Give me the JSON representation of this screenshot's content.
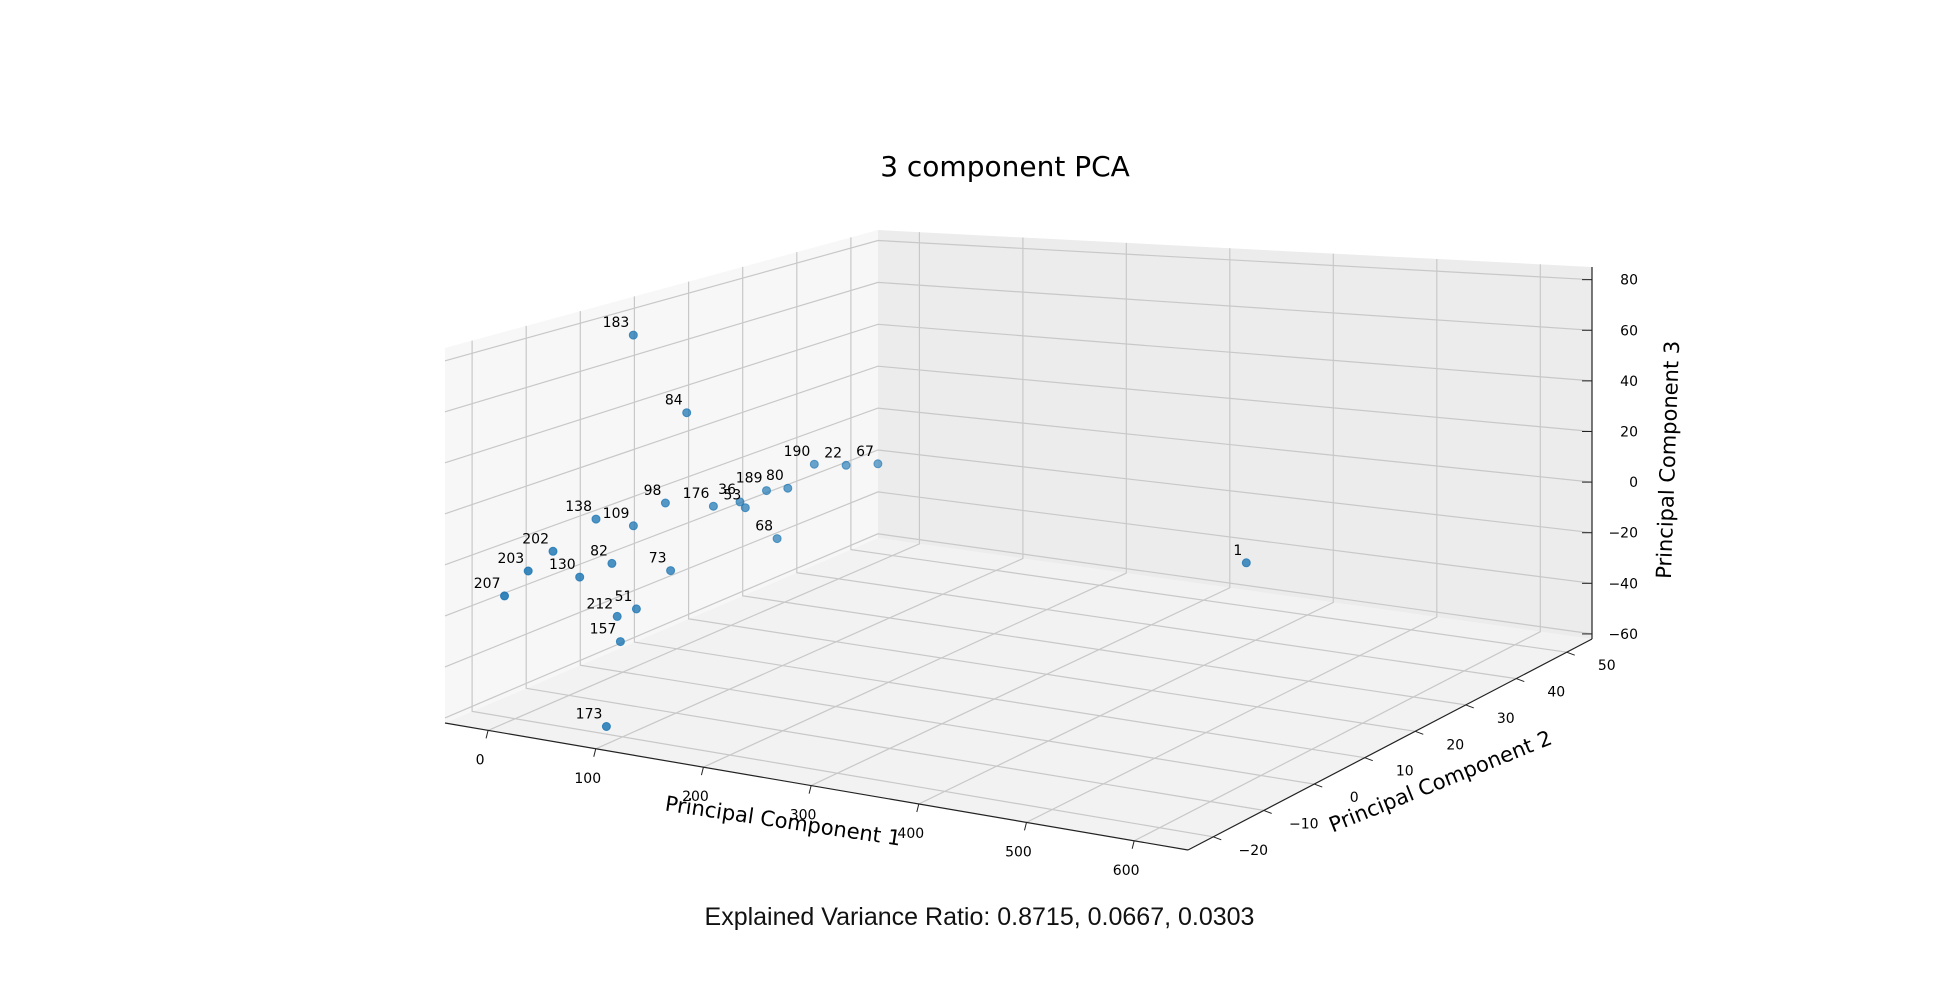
{
  "chart_data": {
    "type": "scatter",
    "projection": "3d",
    "title": "3 component PCA",
    "xlabel": "Principal Component 1",
    "ylabel": "Principal Component 2",
    "zlabel": "Principal Component 3",
    "xticks": [
      "0",
      "100",
      "200",
      "300",
      "400",
      "500",
      "600"
    ],
    "yticks": [
      "−20",
      "−10",
      "0",
      "10",
      "20",
      "30",
      "40",
      "50"
    ],
    "zticks": [
      "−60",
      "−40",
      "−20",
      "0",
      "20",
      "40",
      "60",
      "80"
    ],
    "xlim": [
      -40,
      650
    ],
    "ylim": [
      -25,
      55
    ],
    "zlim": [
      -62,
      85
    ],
    "grid": true,
    "marker_color": "#1f77b4",
    "labeled_points": [
      {
        "label": "183",
        "x": 25,
        "y": -3,
        "z": 80
      },
      {
        "label": "84",
        "x": 60,
        "y": 0,
        "z": 48
      },
      {
        "label": "190",
        "x": 140,
        "y": 8,
        "z": 25
      },
      {
        "label": "22",
        "x": 160,
        "y": 10,
        "z": 24
      },
      {
        "label": "67",
        "x": 180,
        "y": 12,
        "z": 24
      },
      {
        "label": "189",
        "x": 110,
        "y": 5,
        "z": 15
      },
      {
        "label": "80",
        "x": 125,
        "y": 6,
        "z": 16
      },
      {
        "label": "53",
        "x": 95,
        "y": 4,
        "z": 8
      },
      {
        "label": "98",
        "x": 40,
        "y": 0,
        "z": 10
      },
      {
        "label": "176",
        "x": 70,
        "y": 3,
        "z": 8
      },
      {
        "label": "36",
        "x": 85,
        "y": 5,
        "z": 9
      },
      {
        "label": "68",
        "x": 120,
        "y": 5,
        "z": -4
      },
      {
        "label": "138",
        "x": -5,
        "y": -4,
        "z": 4
      },
      {
        "label": "109",
        "x": 15,
        "y": -1,
        "z": 0
      },
      {
        "label": "73",
        "x": 55,
        "y": -2,
        "z": -15
      },
      {
        "label": "82",
        "x": 15,
        "y": -5,
        "z": -12
      },
      {
        "label": "202",
        "x": -20,
        "y": -9,
        "z": -6
      },
      {
        "label": "130",
        "x": 0,
        "y": -8,
        "z": -16
      },
      {
        "label": "212",
        "x": 25,
        "y": -6,
        "z": -32
      },
      {
        "label": "51",
        "x": 38,
        "y": -5,
        "z": -29
      },
      {
        "label": "157",
        "x": 28,
        "y": -6,
        "z": -42
      },
      {
        "label": "173",
        "x": 35,
        "y": -10,
        "z": -72
      },
      {
        "label": "207",
        "x": -35,
        "y": -15,
        "z": -20
      },
      {
        "label": "203",
        "x": -28,
        "y": -12,
        "z": -12
      },
      {
        "label": "1",
        "x": 610,
        "y": -5,
        "z": 22
      }
    ]
  },
  "footer": {
    "text": "Explained Variance Ratio: 0.8715, 0.0667, 0.0303"
  }
}
